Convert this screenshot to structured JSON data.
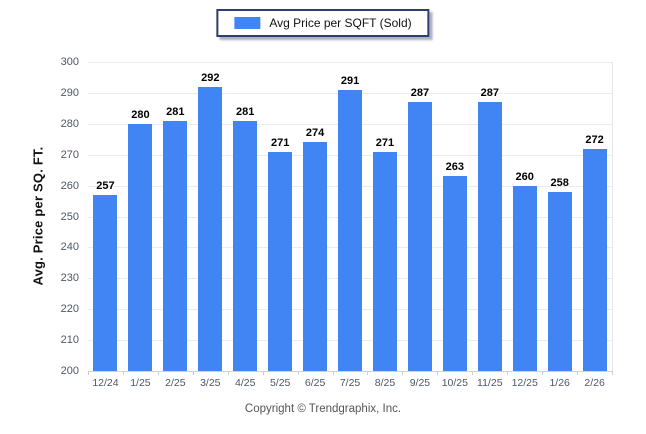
{
  "legend": {
    "label": "Avg Price per SQFT (Sold)",
    "swatch_color": "#4185f4"
  },
  "footer": {
    "copyright": "Copyright © Trendgraphix, Inc."
  },
  "chart_data": {
    "type": "bar",
    "title": "",
    "ylabel": "Avg. Price per SQ. FT.",
    "xlabel": "",
    "categories": [
      "12/24",
      "1/25",
      "2/25",
      "3/25",
      "4/25",
      "5/25",
      "6/25",
      "7/25",
      "8/25",
      "9/25",
      "10/25",
      "11/25",
      "12/25",
      "1/26",
      "2/26"
    ],
    "series": [
      {
        "name": "Avg Price per SQFT (Sold)",
        "values": [
          257,
          280,
          281,
          292,
          281,
          271,
          274,
          291,
          271,
          287,
          263,
          287,
          260,
          258,
          272
        ]
      }
    ],
    "ylim": [
      200,
      300
    ],
    "ytick_step": 10,
    "bar_color": "#4185f4",
    "grid": true,
    "legend_position": "top-center"
  }
}
